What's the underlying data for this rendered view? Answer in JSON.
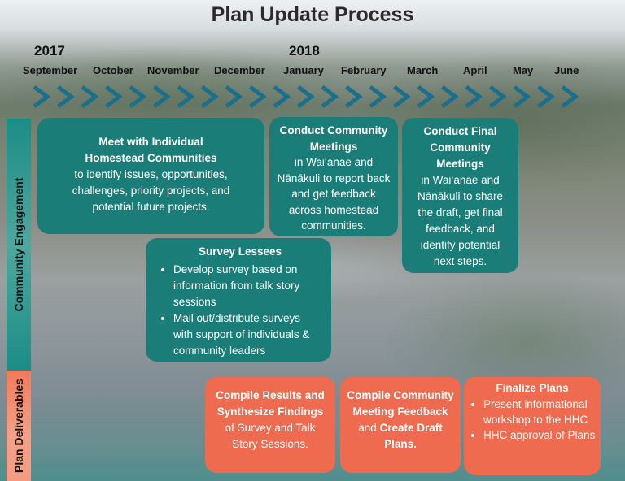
{
  "title": "Plan Update Process",
  "years": [
    "2017",
    "2018"
  ],
  "months": [
    "September",
    "October",
    "November",
    "December",
    "January",
    "February",
    "March",
    "April",
    "May",
    "June"
  ],
  "sections": [
    "Community Engagement",
    "Plan Deliverables"
  ],
  "colors": {
    "engagement": "#1b7d77",
    "deliverables": "#ee6b4f",
    "chevron": "#1b6f8a"
  },
  "engagement_boxes": {
    "meet": {
      "heading": [
        "Meet with Individual",
        "Homestead Communities"
      ],
      "body": [
        "to identify issues, opportunities,",
        "challenges, priority projects, and",
        "potential future projects."
      ]
    },
    "conduct": {
      "heading": [
        "Conduct Community",
        "Meetings"
      ],
      "body": [
        "in Wai‘anae and",
        "Nānākuli to report back",
        "and get feedback",
        "across homestead",
        "communities."
      ]
    },
    "final": {
      "heading": [
        "Conduct Final",
        "Community",
        "Meetings"
      ],
      "body": [
        "in Wai‘anae and",
        "Nānākuli to share",
        "the draft, get final",
        "feedback, and",
        "identify potential",
        "next steps."
      ]
    },
    "survey": {
      "heading": "Survey Lessees",
      "bullets": [
        "Develop survey based on information from talk story sessions",
        "Mail out/distribute  surveys with support of individuals & community leaders"
      ]
    }
  },
  "deliverable_boxes": {
    "compile_results": {
      "bold": [
        "Compile Results and",
        "Synthesize Findings"
      ],
      "body": [
        "of Survey and Talk",
        "Story Sessions."
      ]
    },
    "compile_feedback": {
      "bold": [
        "Compile Community",
        "Meeting Feedback"
      ],
      "and_word": "and",
      "bold2": "Create Draft",
      "bold3": "Plans."
    },
    "finalize": {
      "heading": "Finalize Plans",
      "bullets": [
        "Present informational workshop to the HHC",
        "HHC approval of Plans"
      ]
    }
  }
}
